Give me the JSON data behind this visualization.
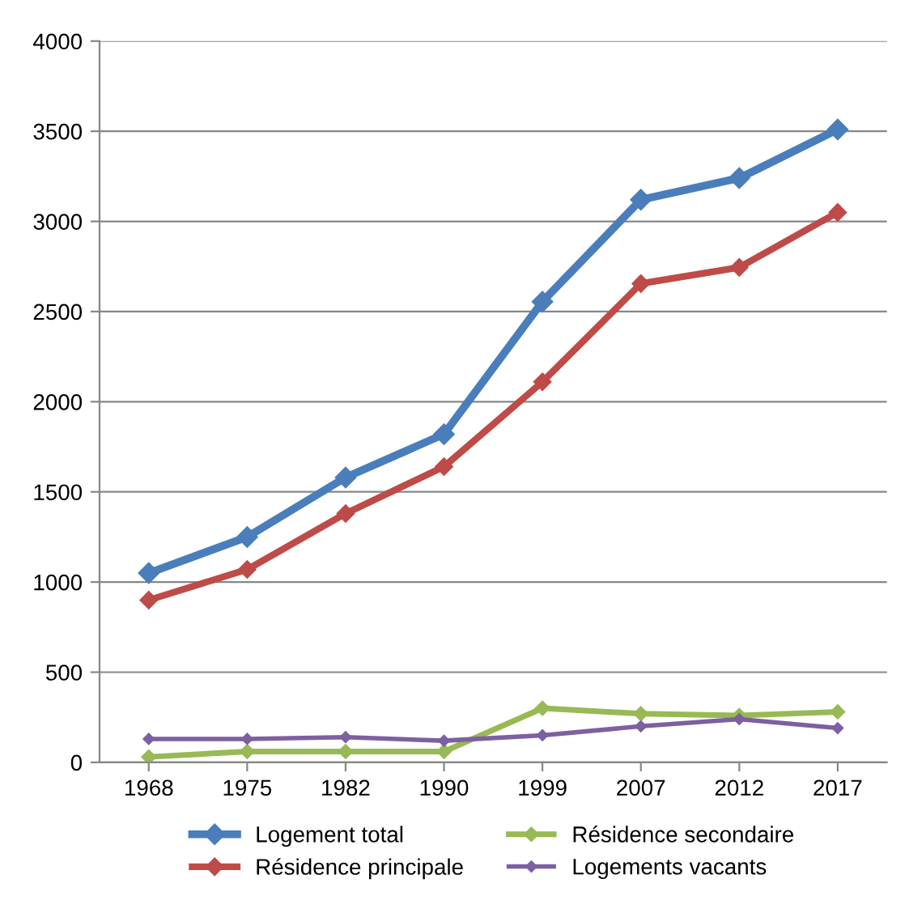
{
  "chart_data": {
    "type": "line",
    "categories": [
      "1968",
      "1975",
      "1982",
      "1990",
      "1999",
      "2007",
      "2012",
      "2017"
    ],
    "series": [
      {
        "name": "Logement total",
        "color": "#4a7ebb",
        "values": [
          1050,
          1250,
          1580,
          1820,
          2555,
          3120,
          3240,
          3510
        ]
      },
      {
        "name": "Résidence principale",
        "color": "#be4b48",
        "values": [
          900,
          1070,
          1380,
          1640,
          2110,
          2655,
          2745,
          3050
        ]
      },
      {
        "name": "Résidence secondaire",
        "color": "#98b954",
        "values": [
          30,
          60,
          60,
          60,
          300,
          270,
          260,
          280
        ]
      },
      {
        "name": "Logements vacants",
        "color": "#7d60a0",
        "values": [
          130,
          130,
          140,
          120,
          150,
          200,
          240,
          190
        ]
      }
    ],
    "ylim": [
      0,
      4000
    ],
    "yticks": [
      0,
      500,
      1000,
      1500,
      2000,
      2500,
      3000,
      3500,
      4000
    ],
    "grid": "y",
    "legend": "bottom",
    "marker": "diamond",
    "line_style": "solid"
  }
}
